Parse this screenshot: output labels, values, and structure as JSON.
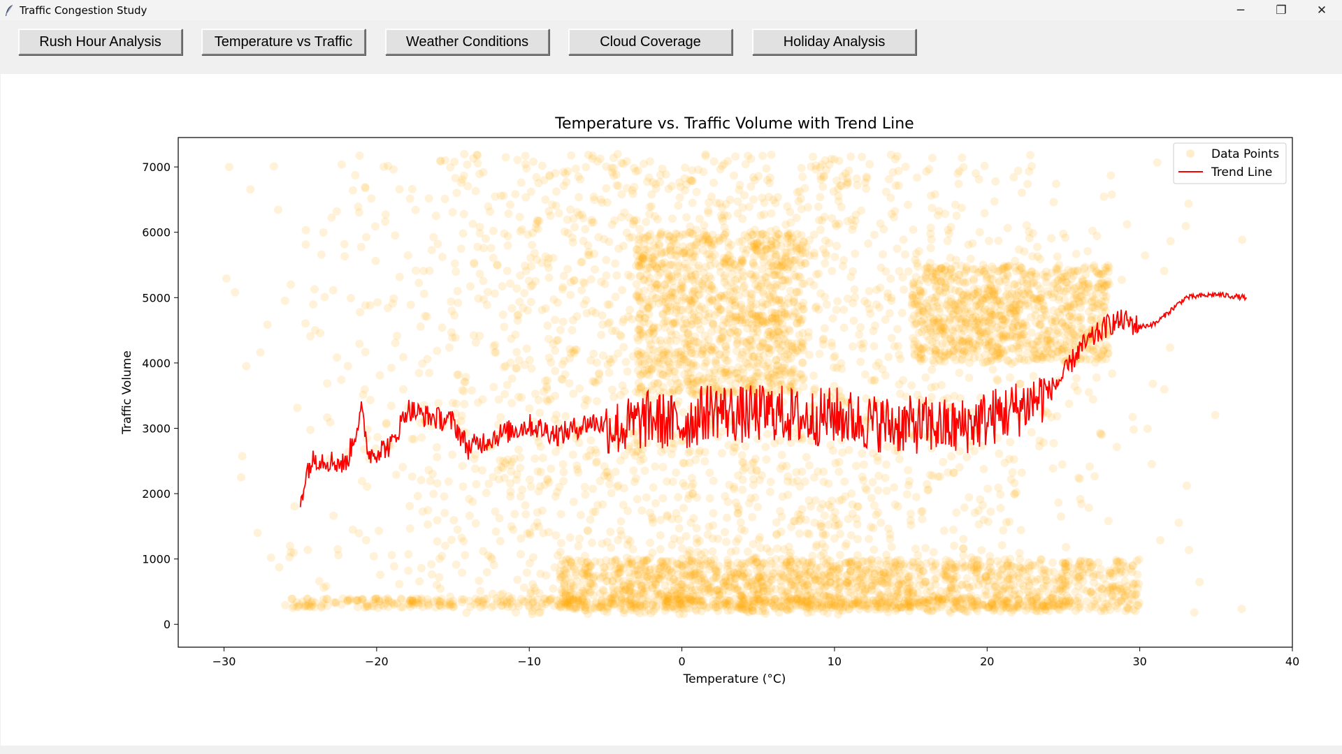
{
  "window": {
    "title": "Traffic Congestion Study",
    "controls": {
      "minimize": "─",
      "maximize": "❐",
      "close": "✕"
    }
  },
  "toolbar": {
    "buttons": [
      {
        "label": "Rush Hour Analysis"
      },
      {
        "label": "Temperature vs Traffic"
      },
      {
        "label": "Weather Conditions"
      },
      {
        "label": "Cloud Coverage"
      },
      {
        "label": "Holiday Analysis"
      }
    ]
  },
  "colors": {
    "points": "#ffa500",
    "trend": "#ff0000",
    "axis": "#000000"
  },
  "chart_data": {
    "type": "scatter",
    "title": "Temperature vs. Traffic Volume with Trend Line",
    "xlabel": "Temperature (°C)",
    "ylabel": "Traffic Volume",
    "xlim": [
      -33,
      40
    ],
    "ylim": [
      -350,
      7450
    ],
    "x_ticks": [
      -30,
      -20,
      -10,
      0,
      10,
      20,
      30,
      40
    ],
    "x_tick_labels": [
      "−30",
      "−20",
      "−10",
      "0",
      "10",
      "20",
      "30",
      "40"
    ],
    "y_ticks": [
      0,
      1000,
      2000,
      3000,
      4000,
      5000,
      6000,
      7000
    ],
    "y_tick_labels": [
      "0",
      "1000",
      "2000",
      "3000",
      "4000",
      "5000",
      "6000",
      "7000"
    ],
    "grid": false,
    "legend": {
      "position": "top-right",
      "entries": [
        "Data Points",
        "Trend Line"
      ]
    },
    "series": [
      {
        "name": "Data Points",
        "kind": "scatter",
        "color": "#ffa500",
        "alpha": 0.15,
        "x_range": [
          -30,
          37
        ],
        "y_range": [
          0,
          7300
        ],
        "dense_regions": [
          {
            "x": [
              -8,
              30
            ],
            "y": [
              200,
              1000
            ]
          },
          {
            "x": [
              -3,
              8
            ],
            "y": [
              3500,
              6000
            ]
          },
          {
            "x": [
              15,
              28
            ],
            "y": [
              4000,
              5500
            ]
          }
        ]
      },
      {
        "name": "Trend Line",
        "kind": "line",
        "color": "#ff0000",
        "points": [
          [
            -25,
            1900
          ],
          [
            -24.5,
            2400
          ],
          [
            -24,
            2550
          ],
          [
            -23,
            2500
          ],
          [
            -22,
            2450
          ],
          [
            -21,
            3250
          ],
          [
            -20.5,
            2600
          ],
          [
            -19,
            2750
          ],
          [
            -18,
            3300
          ],
          [
            -17,
            3200
          ],
          [
            -15,
            3100
          ],
          [
            -14,
            2700
          ],
          [
            -12,
            2900
          ],
          [
            -10,
            3050
          ],
          [
            -8,
            2900
          ],
          [
            -6,
            3100
          ],
          [
            -4,
            3000
          ],
          [
            -2,
            3150
          ],
          [
            0,
            3050
          ],
          [
            2,
            3300
          ],
          [
            4,
            3200
          ],
          [
            6,
            3250
          ],
          [
            8,
            3150
          ],
          [
            10,
            3200
          ],
          [
            12,
            3100
          ],
          [
            14,
            3050
          ],
          [
            16,
            3050
          ],
          [
            18,
            3000
          ],
          [
            20,
            3150
          ],
          [
            22,
            3300
          ],
          [
            24,
            3550
          ],
          [
            25,
            3800
          ],
          [
            26,
            4200
          ],
          [
            27,
            4400
          ],
          [
            28,
            4600
          ],
          [
            29,
            4650
          ],
          [
            30,
            4550
          ],
          [
            31,
            4600
          ],
          [
            32,
            4800
          ],
          [
            33,
            5000
          ],
          [
            35,
            5050
          ],
          [
            37,
            5000
          ]
        ]
      }
    ]
  }
}
